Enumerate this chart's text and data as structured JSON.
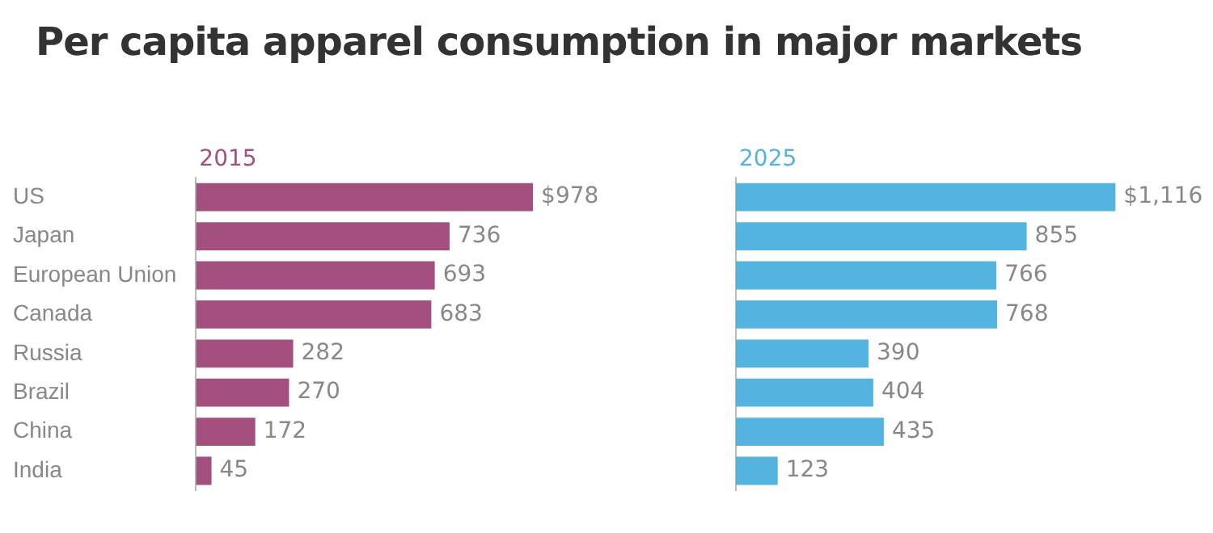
{
  "chart_data": [
    {
      "type": "bar",
      "orientation": "horizontal",
      "title": "Per capita apparel consumption in major markets",
      "categories": [
        "US",
        "Japan",
        "European Union",
        "Canada",
        "Russia",
        "Brazil",
        "China",
        "India"
      ],
      "tick_labels": "y",
      "series": [
        {
          "name": "2015",
          "color": "#a3507f",
          "values": [
            978,
            736,
            693,
            683,
            282,
            270,
            172,
            45
          ],
          "value_labels": [
            "$978",
            "736",
            "693",
            "683",
            "282",
            "270",
            "172",
            "45"
          ]
        }
      ]
    },
    {
      "type": "bar",
      "orientation": "horizontal",
      "categories": [
        null,
        null,
        null,
        null,
        null,
        null,
        null,
        null
      ],
      "tick_labels": false,
      "series": [
        {
          "name": "2025",
          "color": "#55b3e0",
          "values": [
            1116,
            855,
            766,
            768,
            390,
            404,
            435,
            123
          ],
          "value_labels": [
            "$1,116",
            "855",
            "766",
            "768",
            "390",
            "404",
            "435",
            "123"
          ]
        }
      ]
    }
  ]
}
